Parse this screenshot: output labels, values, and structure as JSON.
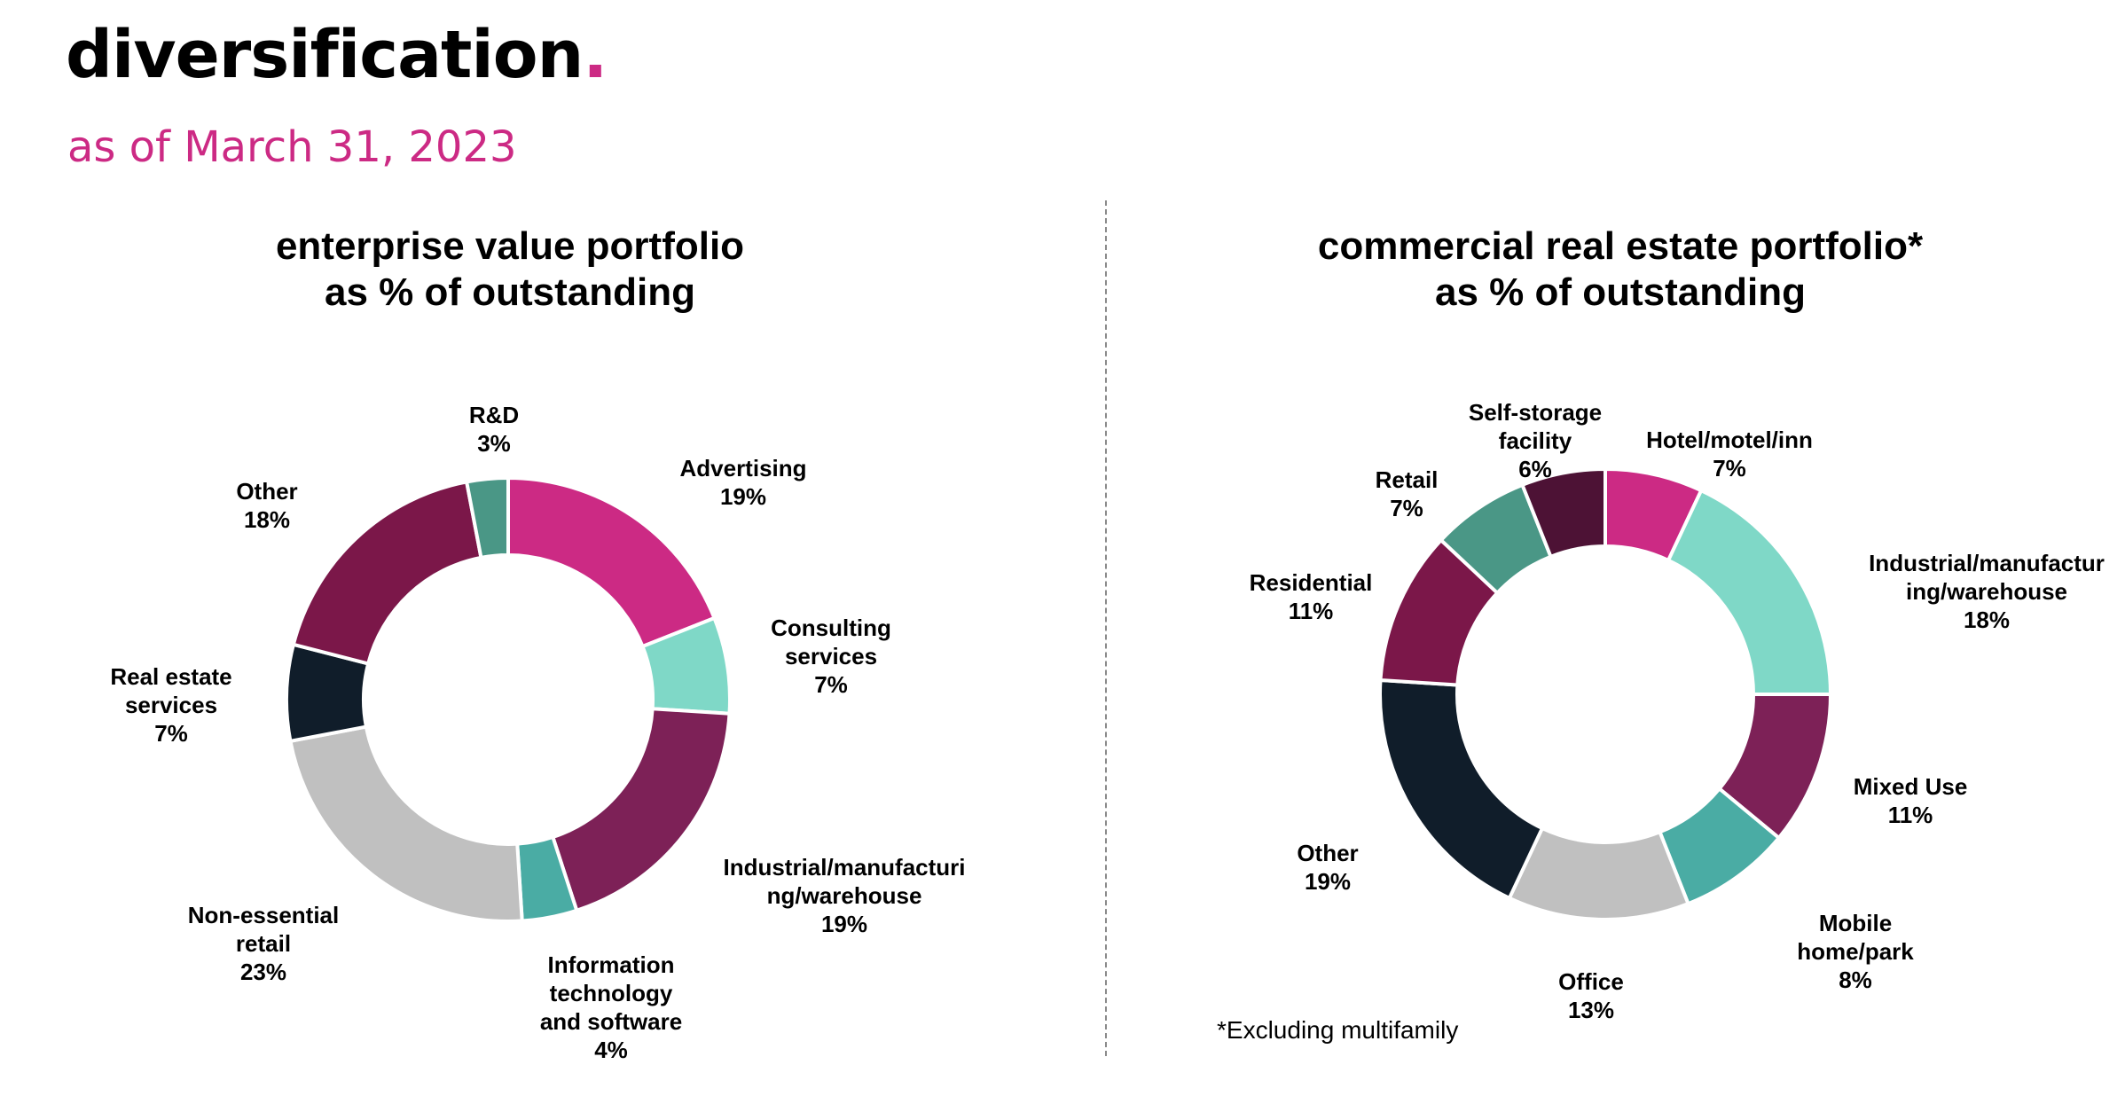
{
  "page": {
    "title": "diversification",
    "title_dot": ".",
    "subtitle": "as of March 31, 2023",
    "footnote": "*Excluding multifamily",
    "accent_color": "#cc2a84"
  },
  "chart_data": [
    {
      "type": "pie",
      "style": "donut",
      "title_line1": "enterprise value portfolio",
      "title_line2": "as % of outstanding",
      "unit": "%",
      "slices": [
        {
          "label_lines": [
            "Advertising"
          ],
          "value": 19,
          "value_text": "19%",
          "color": "#cc2a84"
        },
        {
          "label_lines": [
            "Consulting",
            "services"
          ],
          "value": 7,
          "value_text": "7%",
          "color": "#7fd8c7"
        },
        {
          "label_lines": [
            "Industrial/manufacturi",
            "ng/warehouse"
          ],
          "value": 19,
          "value_text": "19%",
          "color": "#7d2157"
        },
        {
          "label_lines": [
            "Information",
            "technology",
            "and software"
          ],
          "value": 4,
          "value_text": "4%",
          "color": "#4aaca4"
        },
        {
          "label_lines": [
            "Non-essential",
            "retail"
          ],
          "value": 23,
          "value_text": "23%",
          "color": "#c0c0c0"
        },
        {
          "label_lines": [
            "Real estate",
            "services"
          ],
          "value": 7,
          "value_text": "7%",
          "color": "#101d2a"
        },
        {
          "label_lines": [
            "Other"
          ],
          "value": 18,
          "value_text": "18%",
          "color": "#7b1749"
        },
        {
          "label_lines": [
            "R&D"
          ],
          "value": 3,
          "value_text": "3%",
          "color": "#4a9786"
        }
      ]
    },
    {
      "type": "pie",
      "style": "donut",
      "title_line1": "commercial real estate portfolio*",
      "title_line2": "as % of outstanding",
      "unit": "%",
      "slices": [
        {
          "label_lines": [
            "Hotel/motel/inn"
          ],
          "value": 7,
          "value_text": "7%",
          "color": "#cc2a84"
        },
        {
          "label_lines": [
            "Industrial/manufactur",
            "ing/warehouse"
          ],
          "value": 18,
          "value_text": "18%",
          "color": "#7fd8c7"
        },
        {
          "label_lines": [
            "Mixed Use"
          ],
          "value": 11,
          "value_text": "11%",
          "color": "#7d2157"
        },
        {
          "label_lines": [
            "Mobile",
            "home/park"
          ],
          "value": 8,
          "value_text": "8%",
          "color": "#4aaca4"
        },
        {
          "label_lines": [
            "Office"
          ],
          "value": 13,
          "value_text": "13%",
          "color": "#c0c0c0"
        },
        {
          "label_lines": [
            "Other"
          ],
          "value": 19,
          "value_text": "19%",
          "color": "#101d2a"
        },
        {
          "label_lines": [
            "Residential"
          ],
          "value": 11,
          "value_text": "11%",
          "color": "#7b1749"
        },
        {
          "label_lines": [
            "Retail"
          ],
          "value": 7,
          "value_text": "7%",
          "color": "#4a9786"
        },
        {
          "label_lines": [
            "Self-storage",
            "facility"
          ],
          "value": 6,
          "value_text": "6%",
          "color": "#4d1235"
        }
      ]
    }
  ]
}
